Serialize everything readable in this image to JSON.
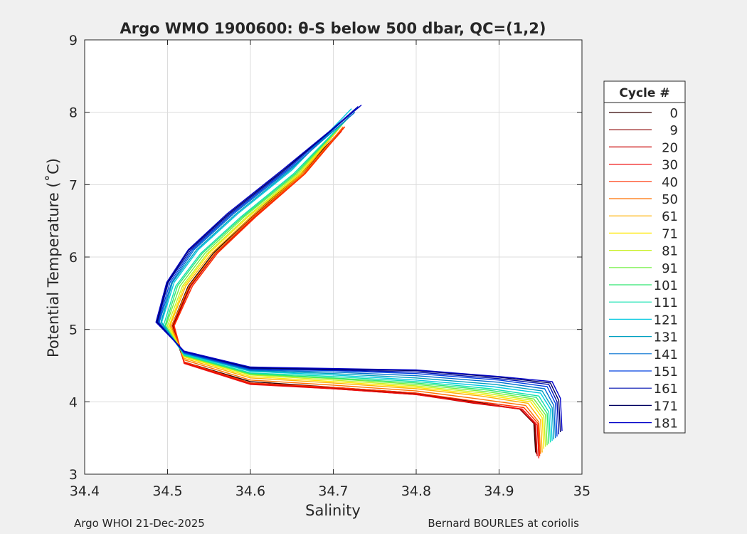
{
  "chart_data": {
    "type": "line",
    "title": "Argo WMO 1900600: θ-S below 500 dbar,  QC=(1,2)",
    "xlabel": "Salinity",
    "ylabel": "Potential Temperature (˚C)",
    "xlim": [
      34.4,
      35.0
    ],
    "ylim": [
      3,
      9
    ],
    "xticks": [
      "34.4",
      "34.5",
      "34.6",
      "34.7",
      "34.8",
      "34.9",
      "35"
    ],
    "yticks": [
      "3",
      "4",
      "5",
      "6",
      "7",
      "8",
      "9"
    ],
    "grid": true,
    "legend": {
      "title": "Cycle #",
      "placement": "right-outside",
      "entries": [
        {
          "label": "0",
          "color": "#300000"
        },
        {
          "label": "9",
          "color": "#8b0000"
        },
        {
          "label": "20",
          "color": "#c80000"
        },
        {
          "label": "30",
          "color": "#f01010"
        },
        {
          "label": "40",
          "color": "#ff3000"
        },
        {
          "label": "50",
          "color": "#ff7000"
        },
        {
          "label": "61",
          "color": "#ffb000"
        },
        {
          "label": "71",
          "color": "#ffe800"
        },
        {
          "label": "81",
          "color": "#c8f020"
        },
        {
          "label": "91",
          "color": "#70f040"
        },
        {
          "label": "101",
          "color": "#30e870"
        },
        {
          "label": "111",
          "color": "#10e0b0"
        },
        {
          "label": "121",
          "color": "#00c8e0"
        },
        {
          "label": "131",
          "color": "#00a0c0"
        },
        {
          "label": "141",
          "color": "#0070d0"
        },
        {
          "label": "151",
          "color": "#0040e0"
        },
        {
          "label": "161",
          "color": "#0010b0"
        },
        {
          "label": "171",
          "color": "#000060"
        },
        {
          "label": "181",
          "color": "#0000c8"
        }
      ]
    },
    "series": [
      {
        "color": "#300000",
        "x": [
          34.705,
          34.66,
          34.6,
          34.555,
          34.525,
          34.505,
          34.52,
          34.6,
          34.7,
          34.8,
          34.87,
          34.925,
          34.942,
          34.944
        ],
        "y": [
          7.7,
          7.15,
          6.55,
          6.05,
          5.6,
          5.05,
          4.55,
          4.28,
          4.2,
          4.12,
          4.0,
          3.9,
          3.7,
          3.3
        ]
      },
      {
        "color": "#8b0000",
        "x": [
          34.708,
          34.662,
          34.602,
          34.557,
          34.527,
          34.506,
          34.52,
          34.6,
          34.7,
          34.8,
          34.87,
          34.925,
          34.943,
          34.945
        ],
        "y": [
          7.72,
          7.15,
          6.55,
          6.05,
          5.6,
          5.05,
          4.55,
          4.26,
          4.19,
          4.11,
          3.99,
          3.9,
          3.7,
          3.28
        ]
      },
      {
        "color": "#c80000",
        "x": [
          34.71,
          34.664,
          34.604,
          34.558,
          34.528,
          34.507,
          34.52,
          34.6,
          34.7,
          34.8,
          34.87,
          34.926,
          34.944,
          34.946
        ],
        "y": [
          7.74,
          7.15,
          6.55,
          6.05,
          5.6,
          5.05,
          4.54,
          4.25,
          4.18,
          4.1,
          3.98,
          3.9,
          3.68,
          3.25
        ]
      },
      {
        "color": "#f01010",
        "x": [
          34.712,
          34.665,
          34.605,
          34.56,
          34.53,
          34.508,
          34.52,
          34.6,
          34.7,
          34.8,
          34.87,
          34.928,
          34.946,
          34.948
        ],
        "y": [
          7.78,
          7.15,
          6.55,
          6.05,
          5.6,
          5.05,
          4.53,
          4.24,
          4.18,
          4.1,
          3.99,
          3.9,
          3.68,
          3.22
        ]
      },
      {
        "color": "#ff3000",
        "x": [
          34.714,
          34.666,
          34.606,
          34.56,
          34.53,
          34.508,
          34.52,
          34.6,
          34.7,
          34.8,
          34.87,
          34.93,
          34.947,
          34.949
        ],
        "y": [
          7.8,
          7.15,
          6.55,
          6.05,
          5.6,
          5.05,
          4.55,
          4.26,
          4.2,
          4.12,
          4.01,
          3.92,
          3.7,
          3.25
        ]
      },
      {
        "color": "#ff7000",
        "x": [
          34.712,
          34.664,
          34.603,
          34.557,
          34.526,
          34.505,
          34.52,
          34.6,
          34.7,
          34.8,
          34.875,
          34.932,
          34.948,
          34.95
        ],
        "y": [
          7.8,
          7.15,
          6.55,
          6.05,
          5.6,
          5.05,
          4.58,
          4.3,
          4.23,
          4.15,
          4.04,
          3.95,
          3.72,
          3.28
        ]
      },
      {
        "color": "#ffb000",
        "x": [
          34.71,
          34.662,
          34.6,
          34.553,
          34.522,
          34.503,
          34.52,
          34.6,
          34.7,
          34.8,
          34.878,
          34.935,
          34.95,
          34.952
        ],
        "y": [
          7.82,
          7.15,
          6.55,
          6.05,
          5.6,
          5.05,
          4.6,
          4.33,
          4.26,
          4.18,
          4.08,
          3.98,
          3.75,
          3.3
        ]
      },
      {
        "color": "#ffe800",
        "x": [
          34.712,
          34.66,
          34.597,
          34.55,
          34.52,
          34.502,
          34.52,
          34.6,
          34.7,
          34.8,
          34.88,
          34.938,
          34.952,
          34.954
        ],
        "y": [
          7.85,
          7.15,
          6.55,
          6.05,
          5.6,
          5.05,
          4.62,
          4.35,
          4.28,
          4.2,
          4.1,
          4.0,
          3.78,
          3.35
        ]
      },
      {
        "color": "#c8f020",
        "x": [
          34.714,
          34.658,
          34.595,
          34.548,
          34.518,
          34.5,
          34.52,
          34.6,
          34.7,
          34.8,
          34.882,
          34.94,
          34.954,
          34.956
        ],
        "y": [
          7.88,
          7.15,
          6.55,
          6.05,
          5.6,
          5.05,
          4.63,
          4.37,
          4.3,
          4.22,
          4.12,
          4.02,
          3.8,
          3.38
        ]
      },
      {
        "color": "#70f040",
        "x": [
          34.716,
          34.656,
          34.592,
          34.545,
          34.515,
          34.498,
          34.52,
          34.6,
          34.7,
          34.8,
          34.885,
          34.942,
          34.956,
          34.958
        ],
        "y": [
          7.9,
          7.15,
          6.55,
          6.05,
          5.6,
          5.05,
          4.64,
          4.38,
          4.32,
          4.24,
          4.14,
          4.04,
          3.82,
          3.4
        ]
      },
      {
        "color": "#30e870",
        "x": [
          34.718,
          34.654,
          34.59,
          34.542,
          34.512,
          34.497,
          34.52,
          34.6,
          34.7,
          34.8,
          34.888,
          34.945,
          34.958,
          34.96
        ],
        "y": [
          7.92,
          7.15,
          6.55,
          6.05,
          5.6,
          5.05,
          4.64,
          4.39,
          4.33,
          4.26,
          4.16,
          4.06,
          3.84,
          3.42
        ]
      },
      {
        "color": "#10e0b0",
        "x": [
          34.72,
          34.652,
          34.588,
          34.54,
          34.51,
          34.495,
          34.52,
          34.6,
          34.7,
          34.8,
          34.89,
          34.948,
          34.96,
          34.962
        ],
        "y": [
          7.95,
          7.15,
          6.55,
          6.05,
          5.6,
          5.05,
          4.65,
          4.4,
          4.35,
          4.28,
          4.18,
          4.08,
          3.86,
          3.44
        ]
      },
      {
        "color": "#00c8e0",
        "x": [
          34.722,
          34.65,
          34.585,
          34.537,
          34.508,
          34.493,
          34.52,
          34.6,
          34.7,
          34.8,
          34.892,
          34.95,
          34.962,
          34.964
        ],
        "y": [
          8.05,
          7.2,
          6.6,
          6.1,
          5.65,
          5.1,
          4.66,
          4.42,
          4.37,
          4.3,
          4.21,
          4.12,
          3.9,
          3.46
        ]
      },
      {
        "color": "#00a0c0",
        "x": [
          34.724,
          34.648,
          34.583,
          34.535,
          34.506,
          34.492,
          34.52,
          34.6,
          34.7,
          34.8,
          34.895,
          34.952,
          34.964,
          34.966
        ],
        "y": [
          8.02,
          7.2,
          6.6,
          6.1,
          5.65,
          5.1,
          4.67,
          4.43,
          4.39,
          4.33,
          4.24,
          4.15,
          3.92,
          3.48
        ]
      },
      {
        "color": "#0070d0",
        "x": [
          34.726,
          34.646,
          34.58,
          34.532,
          34.505,
          34.49,
          34.52,
          34.6,
          34.7,
          34.8,
          34.9,
          34.955,
          34.966,
          34.968
        ],
        "y": [
          8.0,
          7.2,
          6.6,
          6.1,
          5.65,
          5.1,
          4.67,
          4.44,
          4.41,
          4.36,
          4.27,
          4.18,
          3.95,
          3.5
        ]
      },
      {
        "color": "#0040e0",
        "x": [
          34.728,
          34.644,
          34.578,
          34.53,
          34.503,
          34.489,
          34.52,
          34.6,
          34.7,
          34.8,
          34.9,
          34.958,
          34.968,
          34.97
        ],
        "y": [
          8.05,
          7.2,
          6.6,
          6.1,
          5.65,
          5.1,
          4.68,
          4.45,
          4.43,
          4.39,
          4.3,
          4.21,
          3.98,
          3.52
        ]
      },
      {
        "color": "#0010b0",
        "x": [
          34.73,
          34.642,
          34.576,
          34.528,
          34.501,
          34.488,
          34.52,
          34.6,
          34.7,
          34.8,
          34.9,
          34.96,
          34.97,
          34.972
        ],
        "y": [
          8.08,
          7.2,
          6.6,
          6.1,
          5.65,
          5.1,
          4.69,
          4.46,
          4.44,
          4.41,
          4.32,
          4.24,
          4.0,
          3.55
        ]
      },
      {
        "color": "#000060",
        "x": [
          34.732,
          34.64,
          34.574,
          34.526,
          34.5,
          34.487,
          34.52,
          34.6,
          34.7,
          34.8,
          34.9,
          34.962,
          34.972,
          34.974
        ],
        "y": [
          8.08,
          7.2,
          6.6,
          6.1,
          5.65,
          5.1,
          4.7,
          4.47,
          4.45,
          4.43,
          4.34,
          4.26,
          4.02,
          3.58
        ]
      },
      {
        "color": "#0000c8",
        "x": [
          34.734,
          34.638,
          34.572,
          34.525,
          34.499,
          34.486,
          34.52,
          34.6,
          34.7,
          34.8,
          34.9,
          34.964,
          34.974,
          34.976
        ],
        "y": [
          8.1,
          7.2,
          6.6,
          6.1,
          5.65,
          5.1,
          4.7,
          4.48,
          4.46,
          4.44,
          4.35,
          4.28,
          4.05,
          3.6
        ]
      }
    ]
  },
  "footer": {
    "left": "Argo WHOI 21-Dec-2025",
    "right": "Bernard BOURLES at coriolis"
  }
}
